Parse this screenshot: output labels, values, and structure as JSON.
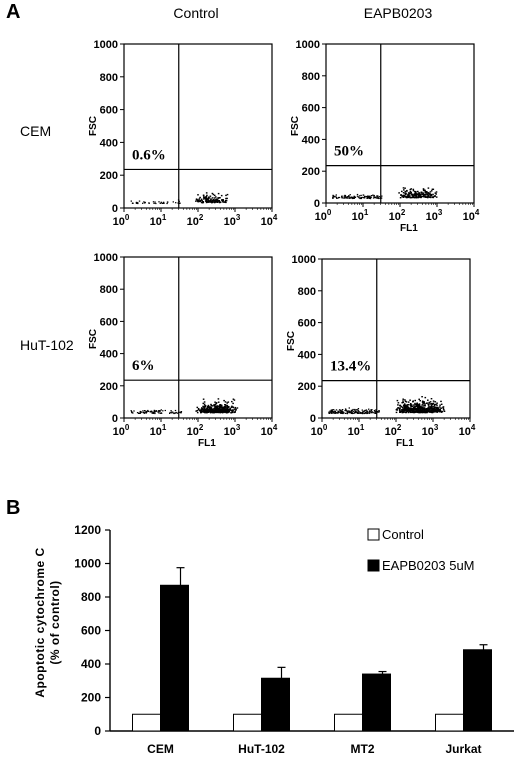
{
  "chart_data": [
    {
      "type": "scatter",
      "panel": "A",
      "columns": [
        "Control",
        "EAPB0203"
      ],
      "rows": [
        "CEM",
        "HuT-102"
      ],
      "xlabel": "FL1",
      "ylabel": "FSC",
      "x_ticks": [
        "10",
        "10",
        "10",
        "10",
        "10"
      ],
      "x_tick_exponents": [
        "0",
        "1",
        "2",
        "3",
        "4"
      ],
      "y_ticks": [
        "0",
        "200",
        "400",
        "600",
        "800",
        "1000"
      ],
      "xlim": [
        1,
        10000
      ],
      "ylim": [
        0,
        1000
      ],
      "x_scale": "log",
      "plots": [
        {
          "row": "CEM",
          "column": "Control",
          "percent_label": "0.6%",
          "percent": 0.6,
          "show_xlabel": false
        },
        {
          "row": "CEM",
          "column": "EAPB0203",
          "percent_label": "50%",
          "percent": 50,
          "show_xlabel": true
        },
        {
          "row": "HuT-102",
          "column": "Control",
          "percent_label": "6%",
          "percent": 6,
          "show_xlabel": true
        },
        {
          "row": "HuT-102",
          "column": "EAPB0203",
          "percent_label": "13.4%",
          "percent": 13.4,
          "show_xlabel": true
        }
      ]
    },
    {
      "type": "bar",
      "panel": "B",
      "categories": [
        "CEM",
        "HuT-102",
        "MT2",
        "Jurkat"
      ],
      "series": [
        {
          "name": "Control",
          "values": [
            100,
            100,
            100,
            100
          ],
          "errors": [
            0,
            0,
            0,
            0
          ],
          "color": "#ffffff"
        },
        {
          "name": "EAPB0203 5uM",
          "values": [
            870,
            315,
            340,
            485
          ],
          "errors": [
            105,
            65,
            15,
            30
          ],
          "color": "#000000"
        }
      ],
      "xlabel": "",
      "ylabel_lines": [
        "Apoptotic cytochrome C",
        "(% of control)"
      ],
      "ylim": [
        0,
        1200
      ],
      "y_ticks": [
        "0",
        "200",
        "400",
        "600",
        "800",
        "1000",
        "1200"
      ],
      "legend_position": "top-right"
    }
  ]
}
